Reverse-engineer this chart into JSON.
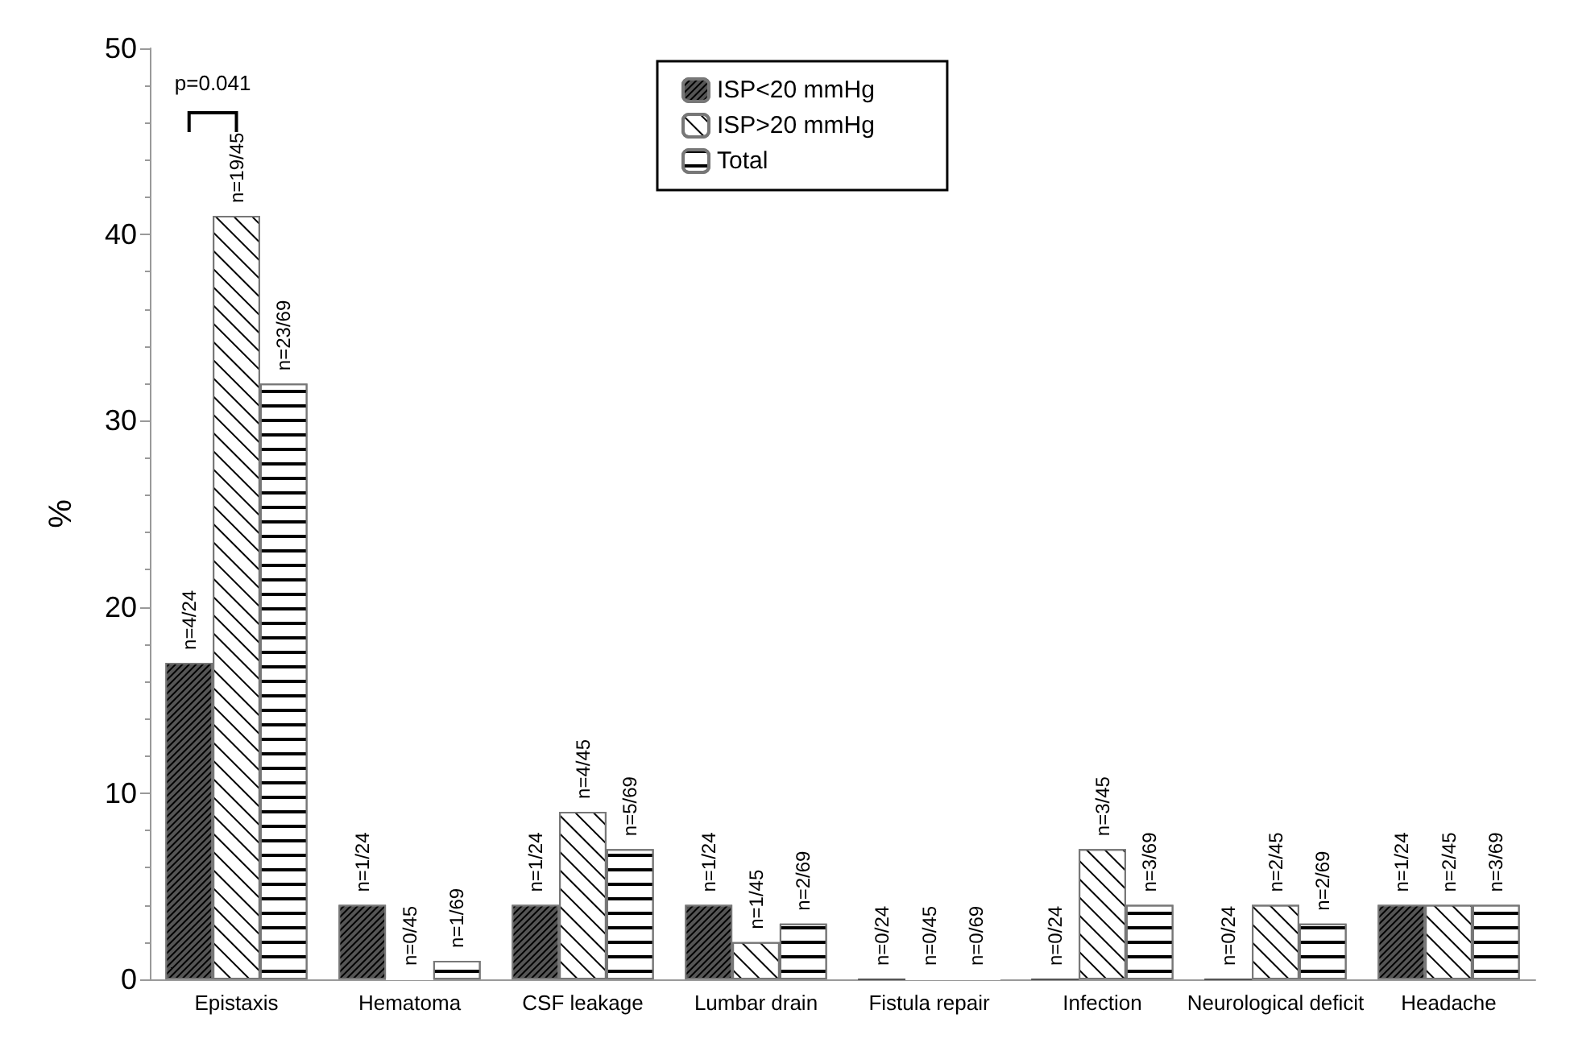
{
  "chart_data": {
    "type": "bar",
    "ylabel": "%",
    "categories": [
      "Epistaxis",
      "Hematoma",
      "CSF leakage",
      "Lumbar drain",
      "Fistula repair",
      "Infection",
      "Neurological deficit",
      "Headache"
    ],
    "series": [
      {
        "name": "ISP<20 mmHg",
        "color": "#555555",
        "values": [
          17,
          4,
          4,
          4,
          0,
          0,
          0,
          4
        ],
        "value_labels": [
          "n=4/24",
          "n=1/24",
          "n=1/24",
          "n=1/24",
          "n=0/24",
          "n=0/24",
          "n=0/24",
          "n=1/24"
        ]
      },
      {
        "name": "ISP>20 mmHg",
        "color": "#ffffff",
        "values": [
          41,
          0,
          9,
          2,
          0,
          7,
          4,
          4
        ],
        "value_labels": [
          "n=19/45",
          "n=0/45",
          "n=4/45",
          "n=1/45",
          "n=0/45",
          "n=3/45",
          "n=2/45",
          "n=2/45"
        ]
      },
      {
        "name": "Total",
        "color": "#ffffff",
        "values": [
          32,
          1,
          7,
          3,
          0,
          4,
          3,
          4
        ],
        "value_labels": [
          "n=23/69",
          "n=1/69",
          "n=5/69",
          "n=2/69",
          "n=0/69",
          "n=3/69",
          "n=2/69",
          "n=3/69"
        ]
      }
    ],
    "ylim": [
      0,
      50
    ],
    "yticks": [
      0,
      10,
      20,
      30,
      40,
      50
    ],
    "grid": false,
    "legend": "top",
    "annotations": [
      "p=0.041"
    ]
  }
}
